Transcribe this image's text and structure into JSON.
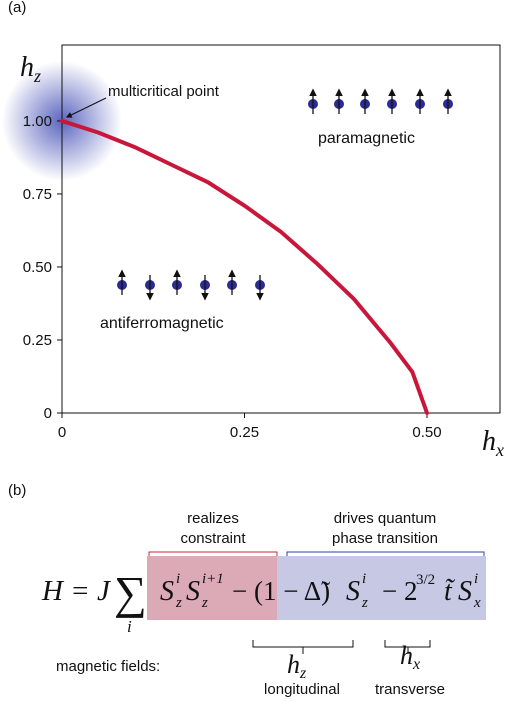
{
  "chart_data": {
    "type": "line",
    "panel_label": "(a)",
    "x_label": {
      "symbol": "h",
      "subscript": "x"
    },
    "y_label": {
      "symbol": "h",
      "subscript": "z"
    },
    "x": [
      0,
      0.05,
      0.1,
      0.15,
      0.2,
      0.25,
      0.3,
      0.35,
      0.4,
      0.45,
      0.48,
      0.5
    ],
    "values": [
      1.0,
      0.96,
      0.91,
      0.85,
      0.79,
      0.71,
      0.62,
      0.51,
      0.39,
      0.24,
      0.14,
      0
    ],
    "color": "#c8173a",
    "xlim": [
      0,
      0.6
    ],
    "ylim": [
      0,
      1.26
    ],
    "xticks": [
      0,
      0.25,
      {
        "value": 0.5,
        "label": "0.50"
      }
    ],
    "yticks": [
      0,
      0.25,
      {
        "value": 0.5,
        "label": "0.50"
      },
      {
        "value": 0.75,
        "label": "0.75"
      },
      {
        "value": 1,
        "label": "1.00"
      }
    ],
    "annotations": {
      "point": "multicritical point",
      "upper": "paramagnetic",
      "lower": "antiferromagnetic"
    }
  },
  "panel_b": {
    "panel_label": "(b)",
    "brackets": [
      {
        "lines": [
          "realizes",
          "constraint"
        ]
      },
      {
        "lines": [
          "drives quantum",
          "phase transition"
        ]
      }
    ],
    "equation": {
      "lhs": "H = J",
      "sum": "∑",
      "sum_index": "i",
      "terms": [
        {
          "symbol": "S",
          "sup": "i",
          "sub": "z"
        },
        {
          "symbol": "S",
          "sup": "i+1",
          "sub": "z"
        },
        {
          "text": "− (1 − Δ̃)"
        },
        {
          "symbol": "S",
          "sup": "i",
          "sub": "z"
        },
        {
          "text": "− 2",
          "sup": "3/2"
        },
        {
          "text": "t̃"
        },
        {
          "symbol": "S",
          "sup": "i",
          "sub": "x"
        }
      ]
    },
    "fields_label": "magnetic fields:",
    "fields": [
      {
        "symbol": "h",
        "sub": "z",
        "name": "longitudinal"
      },
      {
        "symbol": "h",
        "sub": "x",
        "name": "transverse"
      }
    ]
  }
}
